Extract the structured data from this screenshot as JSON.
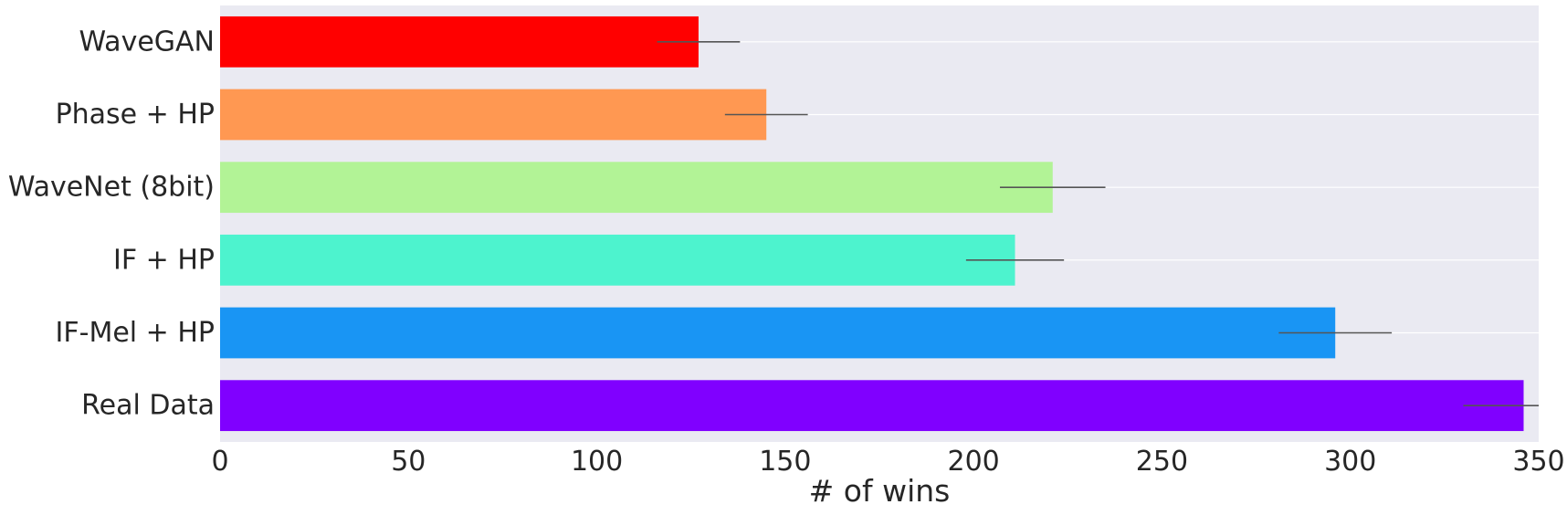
{
  "chart_data": {
    "type": "bar",
    "orientation": "horizontal",
    "categories": [
      "WaveGAN",
      "Phase + HP",
      "WaveNet (8bit)",
      "IF + HP",
      "IF-Mel + HP",
      "Real Data"
    ],
    "values": [
      127,
      145,
      221,
      211,
      296,
      346
    ],
    "error_low": [
      116,
      134,
      207,
      198,
      281,
      330
    ],
    "error_high": [
      138,
      156,
      235,
      224,
      311,
      352
    ],
    "colors": [
      "#ff0000",
      "#ff9852",
      "#b2f396",
      "#4df3ce",
      "#1995f4",
      "#8000ff"
    ],
    "xlabel": "# of wins",
    "ylabel": "",
    "xlim": [
      0,
      350
    ],
    "xticks": [
      0,
      50,
      100,
      150,
      200,
      250,
      300,
      350
    ],
    "grid": true,
    "background": "#eaeaf2"
  }
}
